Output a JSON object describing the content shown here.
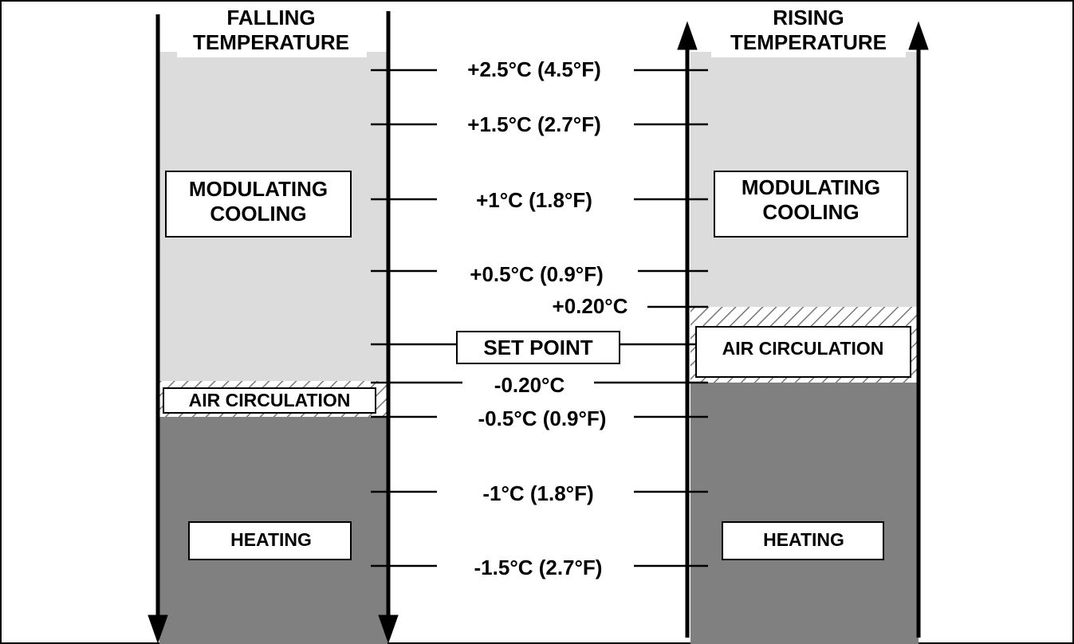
{
  "left_header": [
    "FALLING",
    "TEMPERATURE"
  ],
  "right_header": [
    "RISING",
    "TEMPERATURE"
  ],
  "levels": [
    "+2.5°C (4.5°F)",
    "+1.5°C (2.7°F)",
    "+1°C (1.8°F)",
    "+0.5°C (0.9°F)",
    "+0.20°C",
    "SET POINT",
    "-0.20°C",
    "-0.5°C (0.9°F)",
    "-1°C (1.8°F)",
    "-1.5°C (2.7°F)"
  ],
  "left_zones": {
    "cooling": [
      "MODULATING",
      "COOLING"
    ],
    "air_circulation": "AIR CIRCULATION",
    "heating": "HEATING"
  },
  "right_zones": {
    "cooling": [
      "MODULATING",
      "COOLING"
    ],
    "air_circulation": "AIR CIRCULATION",
    "heating": "HEATING"
  }
}
